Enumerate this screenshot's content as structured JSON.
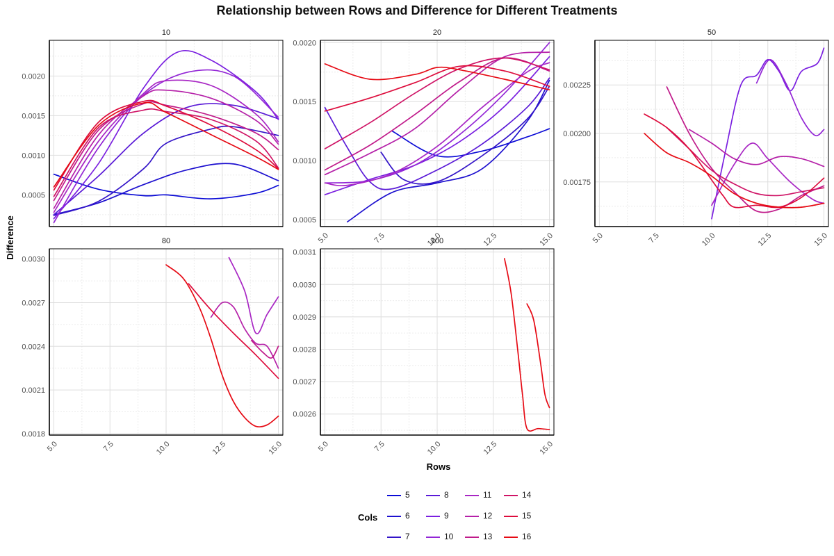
{
  "chart_data": {
    "type": "line",
    "title": "Relationship between Rows and Difference for Different Treatments",
    "xlabel": "Rows",
    "ylabel": "Difference",
    "legend": {
      "title": "Cols",
      "placement": "bottom",
      "entries": [
        {
          "name": "5",
          "color": "#0b0bd6"
        },
        {
          "name": "6",
          "color": "#1d10cf"
        },
        {
          "name": "7",
          "color": "#3314c8"
        },
        {
          "name": "8",
          "color": "#5a1ad7"
        },
        {
          "name": "9",
          "color": "#7a1fe0"
        },
        {
          "name": "10",
          "color": "#9326d6"
        },
        {
          "name": "11",
          "color": "#a826c4"
        },
        {
          "name": "12",
          "color": "#b520a8"
        },
        {
          "name": "13",
          "color": "#c01a8a"
        },
        {
          "name": "14",
          "color": "#cf1466"
        },
        {
          "name": "15",
          "color": "#dd0c3c"
        },
        {
          "name": "16",
          "color": "#e60a14"
        }
      ]
    },
    "panels": [
      {
        "label": "10",
        "xlim": [
          4.8,
          15.2
        ],
        "ylim": [
          0.0001,
          0.00245
        ],
        "yticks": [
          "0.0005",
          "0.0010",
          "0.0015",
          "0.0020"
        ],
        "ytick_values": [
          0.0005,
          0.001,
          0.0015,
          0.002
        ],
        "xticks": [],
        "series": [
          {
            "name": "5",
            "x": [
              5,
              7,
              9,
              10,
              12,
              14,
              15
            ],
            "y": [
              0.00076,
              0.00057,
              0.00049,
              0.0005,
              0.00045,
              0.00052,
              0.00062
            ]
          },
          {
            "name": "6",
            "x": [
              5,
              7,
              9,
              11,
              13,
              15
            ],
            "y": [
              0.00025,
              0.0004,
              0.00063,
              0.00082,
              0.00089,
              0.00068
            ]
          },
          {
            "name": "7",
            "x": [
              5,
              7,
              9,
              10,
              12,
              13,
              15
            ],
            "y": [
              0.00024,
              0.00042,
              0.00083,
              0.00115,
              0.00133,
              0.00136,
              0.00125
            ]
          },
          {
            "name": "8",
            "x": [
              5,
              7,
              9,
              11,
              13,
              15
            ],
            "y": [
              0.00025,
              0.00074,
              0.00128,
              0.00161,
              0.00163,
              0.00146
            ]
          },
          {
            "name": "9",
            "x": [
              5,
              7,
              9,
              10.5,
              12,
              14,
              15
            ],
            "y": [
              0.0002,
              0.0009,
              0.00185,
              0.0023,
              0.0022,
              0.0018,
              0.00145
            ]
          },
          {
            "name": "10",
            "x": [
              5,
              7,
              9,
              11,
              13,
              15
            ],
            "y": [
              0.00015,
              0.0011,
              0.00176,
              0.00205,
              0.002,
              0.00148
            ]
          },
          {
            "name": "11",
            "x": [
              5,
              7,
              9,
              10,
              12,
              14,
              15
            ],
            "y": [
              0.00028,
              0.00118,
              0.00178,
              0.00194,
              0.00188,
              0.00152,
              0.00117
            ]
          },
          {
            "name": "12",
            "x": [
              5,
              7,
              9,
              10,
              12,
              14,
              15
            ],
            "y": [
              0.00033,
              0.00126,
              0.00175,
              0.00182,
              0.00172,
              0.00144,
              0.00114
            ]
          },
          {
            "name": "13",
            "x": [
              5,
              7,
              9,
              10,
              12,
              14,
              15
            ],
            "y": [
              0.00043,
              0.00132,
              0.00165,
              0.00163,
              0.0015,
              0.00128,
              0.00107
            ]
          },
          {
            "name": "14",
            "x": [
              5,
              7,
              9,
              10,
              12,
              14,
              15
            ],
            "y": [
              0.00048,
              0.00135,
              0.00157,
              0.00155,
              0.00145,
              0.00118,
              0.00084
            ]
          },
          {
            "name": "15",
            "x": [
              5,
              7,
              9,
              10,
              12,
              14,
              15
            ],
            "y": [
              0.00056,
              0.00142,
              0.00168,
              0.00162,
              0.00138,
              0.00107,
              0.00083
            ]
          },
          {
            "name": "16",
            "x": [
              5,
              7,
              9,
              10,
              12,
              14,
              15
            ],
            "y": [
              0.0006,
              0.00138,
              0.00166,
              0.00154,
              0.00126,
              0.00098,
              0.00082
            ]
          }
        ]
      },
      {
        "label": "20",
        "xlim": [
          4.8,
          15.2
        ],
        "ylim": [
          0.00044,
          0.00202
        ],
        "yticks": [
          "0.0005",
          "0.0010",
          "0.0015",
          "0.0020"
        ],
        "ytick_values": [
          0.0005,
          0.001,
          0.0015,
          0.002
        ],
        "xticks": [
          "5.0",
          "7.5",
          "10.0",
          "12.5",
          "15.0"
        ],
        "xtick_values": [
          5,
          7.5,
          10,
          12.5,
          15
        ],
        "series": [
          {
            "name": "5",
            "x": [
              8,
              10,
              12,
              14,
              15
            ],
            "y": [
              0.00125,
              0.00104,
              0.00108,
              0.0012,
              0.00127
            ]
          },
          {
            "name": "6",
            "x": [
              6,
              8,
              10,
              12,
              14,
              15
            ],
            "y": [
              0.00048,
              0.00073,
              0.00081,
              0.00093,
              0.00133,
              0.00168
            ]
          },
          {
            "name": "7",
            "x": [
              7.5,
              8.5,
              10,
              12,
              14,
              15
            ],
            "y": [
              0.00107,
              0.00084,
              0.00082,
              0.00104,
              0.00135,
              0.00163
            ]
          },
          {
            "name": "8",
            "x": [
              5,
              6,
              7,
              8,
              10,
              12,
              14,
              15
            ],
            "y": [
              0.00145,
              0.00111,
              0.00082,
              0.00076,
              0.00092,
              0.00114,
              0.00145,
              0.0017
            ]
          },
          {
            "name": "9",
            "x": [
              5,
              7,
              9,
              11,
              13,
              15
            ],
            "y": [
              0.00071,
              0.00084,
              0.00096,
              0.00116,
              0.00146,
              0.00188
            ]
          },
          {
            "name": "10",
            "x": [
              5,
              7,
              9,
              11,
              13,
              15
            ],
            "y": [
              0.00081,
              0.00083,
              0.00096,
              0.00122,
              0.00157,
              0.002
            ]
          },
          {
            "name": "11",
            "x": [
              5,
              6,
              8,
              10,
              12,
              14,
              15
            ],
            "y": [
              0.00081,
              0.00079,
              0.00089,
              0.00112,
              0.00145,
              0.00175,
              0.00183
            ]
          },
          {
            "name": "12",
            "x": [
              5,
              7,
              9,
              11,
              13,
              15
            ],
            "y": [
              0.00088,
              0.00106,
              0.00127,
              0.0016,
              0.00188,
              0.00192
            ]
          },
          {
            "name": "13",
            "x": [
              5,
              7,
              9,
              11,
              13,
              15
            ],
            "y": [
              0.00092,
              0.00113,
              0.00139,
              0.00167,
              0.00187,
              0.00176
            ]
          },
          {
            "name": "14",
            "x": [
              5,
              7,
              9,
              11,
              13,
              15
            ],
            "y": [
              0.0011,
              0.00132,
              0.00157,
              0.00178,
              0.00187,
              0.00177
            ]
          },
          {
            "name": "15",
            "x": [
              5,
              7,
              9,
              11,
              13,
              15
            ],
            "y": [
              0.00142,
              0.00153,
              0.00166,
              0.0018,
              0.00176,
              0.00163
            ]
          },
          {
            "name": "16",
            "x": [
              5,
              7,
              9,
              10,
              11,
              13,
              15
            ],
            "y": [
              0.00182,
              0.00169,
              0.00173,
              0.00179,
              0.00177,
              0.00169,
              0.0016
            ]
          }
        ]
      },
      {
        "label": "50",
        "xlim": [
          4.8,
          15.2
        ],
        "ylim": [
          0.00152,
          0.00248
        ],
        "yticks": [
          "0.00175",
          "0.00200",
          "0.00225"
        ],
        "ytick_values": [
          0.00175,
          0.002,
          0.00225
        ],
        "xticks": [
          "5.0",
          "7.5",
          "10.0",
          "12.5",
          "15.0"
        ],
        "xtick_values": [
          5,
          7.5,
          10,
          12.5,
          15
        ],
        "series": [
          {
            "name": "9",
            "x": [
              10,
              10.6,
              11.3,
              12,
              12.5,
              13,
              13.5,
              14,
              14.7,
              15
            ],
            "y": [
              0.00156,
              0.0019,
              0.00225,
              0.0023,
              0.00238,
              0.00232,
              0.00222,
              0.00232,
              0.00236,
              0.00244
            ]
          },
          {
            "name": "10",
            "x": [
              12,
              12.6,
              13.3,
              14,
              14.6,
              15
            ],
            "y": [
              0.00226,
              0.00238,
              0.00226,
              0.00208,
              0.00199,
              0.00202
            ]
          },
          {
            "name": "11",
            "x": [
              10,
              11,
              11.8,
              12.5,
              13.5,
              14.5,
              15
            ],
            "y": [
              0.00163,
              0.00184,
              0.00195,
              0.00187,
              0.00175,
              0.00166,
              0.00164
            ]
          },
          {
            "name": "12",
            "x": [
              9,
              10,
              11,
              12,
              13,
              14,
              15
            ],
            "y": [
              0.00202,
              0.00195,
              0.00187,
              0.00184,
              0.00188,
              0.00187,
              0.00183
            ]
          },
          {
            "name": "13",
            "x": [
              8,
              9,
              10,
              11,
              12,
              13,
              14,
              15
            ],
            "y": [
              0.00224,
              0.002,
              0.00182,
              0.0017,
              0.0016,
              0.00161,
              0.00168,
              0.00173
            ]
          },
          {
            "name": "14",
            "x": [
              8,
              9,
              10,
              11,
              12,
              13,
              14,
              15
            ],
            "y": [
              0.00203,
              0.00192,
              0.00181,
              0.00174,
              0.00169,
              0.00168,
              0.0017,
              0.00172
            ]
          },
          {
            "name": "15",
            "x": [
              7,
              8,
              9,
              10,
              10.5,
              11,
              12,
              13,
              14,
              15
            ],
            "y": [
              0.0021,
              0.00203,
              0.00192,
              0.00176,
              0.00168,
              0.00162,
              0.00163,
              0.00162,
              0.00167,
              0.00177
            ]
          },
          {
            "name": "16",
            "x": [
              7,
              8,
              9,
              10,
              11,
              12,
              13,
              14,
              15
            ],
            "y": [
              0.002,
              0.0019,
              0.00185,
              0.00178,
              0.00169,
              0.00164,
              0.00162,
              0.00162,
              0.00164
            ]
          }
        ]
      },
      {
        "label": "80",
        "xlim": [
          4.8,
          15.2
        ],
        "ylim": [
          0.00179,
          0.00307
        ],
        "yticks": [
          "0.0018",
          "0.0021",
          "0.0024",
          "0.0027",
          "0.0030"
        ],
        "ytick_values": [
          0.0018,
          0.0021,
          0.0024,
          0.0027,
          0.003
        ],
        "xticks": [
          "5.0",
          "7.5",
          "10.0",
          "12.5",
          "15.0"
        ],
        "xtick_values": [
          5,
          7.5,
          10,
          12.5,
          15
        ],
        "series": [
          {
            "name": "11",
            "x": [
              12.8,
              13.5,
              14,
              14.5,
              15
            ],
            "y": [
              0.00301,
              0.00278,
              0.00249,
              0.00262,
              0.00274
            ]
          },
          {
            "name": "12",
            "x": [
              12,
              12.5,
              13,
              13.5,
              14,
              14.5,
              15
            ],
            "y": [
              0.0026,
              0.0027,
              0.00267,
              0.00252,
              0.00242,
              0.0024,
              0.00225
            ]
          },
          {
            "name": "13",
            "x": [
              13.8,
              14.3,
              14.7,
              15
            ],
            "y": [
              0.00244,
              0.00236,
              0.00232,
              0.0024
            ]
          },
          {
            "name": "15",
            "x": [
              11,
              12,
              13,
              14,
              15
            ],
            "y": [
              0.00283,
              0.00265,
              0.00249,
              0.00234,
              0.00218
            ]
          },
          {
            "name": "16",
            "x": [
              10,
              10.8,
              11.5,
              12,
              12.5,
              13,
              13.5,
              14,
              14.5,
              15
            ],
            "y": [
              0.00296,
              0.00286,
              0.00266,
              0.00245,
              0.0022,
              0.00202,
              0.00191,
              0.00185,
              0.00186,
              0.00192
            ]
          }
        ]
      },
      {
        "label": "100",
        "xlim": [
          4.8,
          15.2
        ],
        "ylim": [
          0.002535,
          0.00311
        ],
        "yticks": [
          "0.0026",
          "0.0027",
          "0.0028",
          "0.0029",
          "0.0030",
          "0.0031"
        ],
        "ytick_values": [
          0.0026,
          0.0027,
          0.0028,
          0.0029,
          0.003,
          0.0031
        ],
        "xticks": [
          "5.0",
          "7.5",
          "10.0",
          "12.5",
          "15.0"
        ],
        "xtick_values": [
          5,
          7.5,
          10,
          12.5,
          15
        ],
        "series": [
          {
            "name": "16",
            "x": [
              13,
              13.3,
              13.6,
              13.8,
              14,
              14.5,
              15
            ],
            "y": [
              0.00308,
              0.00297,
              0.00279,
              0.00266,
              0.002555,
              0.002555,
              0.002552
            ]
          },
          {
            "name": "16",
            "x": [
              14,
              14.3,
              14.6,
              14.8,
              15
            ],
            "y": [
              0.00294,
              0.00289,
              0.00276,
              0.00266,
              0.00262
            ]
          }
        ]
      }
    ]
  }
}
